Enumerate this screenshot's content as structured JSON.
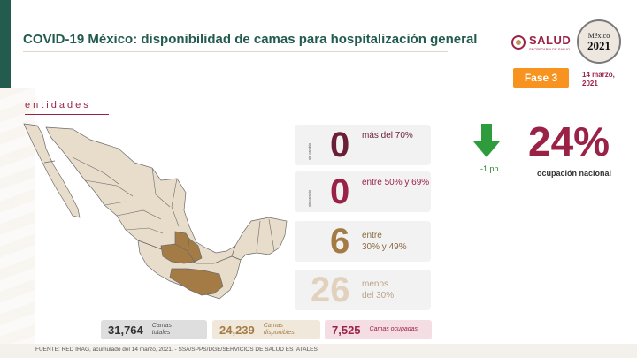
{
  "header": {
    "title": "COVID-19 México: disponibilidad de camas para hospitalización general",
    "salud_logo_text": "SALUD",
    "salud_logo_sub": "SECRETARÍA DE SALUD",
    "mexico_logo_line1": "México",
    "mexico_logo_line2": "2021",
    "fase_label": "Fase 3",
    "date_line1": "14 marzo,",
    "date_line2": "2021"
  },
  "map": {
    "title": "entidades",
    "colors": {
      "base": "#e8dccb",
      "border": "#6b6b6b",
      "range_30_49": "#a57b45"
    }
  },
  "ranges": [
    {
      "side_label": "sin cambio",
      "count": "0",
      "label_line1": "más del 70%",
      "label_line2": "",
      "color": "#6b1f36",
      "label_color": "#6b1f36"
    },
    {
      "side_label": "sin cambio",
      "count": "0",
      "label_line1": "entre 50% y 69%",
      "label_line2": "",
      "color": "#9b2247",
      "label_color": "#9b2247"
    },
    {
      "side_label": "",
      "count": "6",
      "label_line1": "entre",
      "label_line2": "30% y 49%",
      "color": "#a57b45",
      "label_color": "#8a6a3e"
    },
    {
      "side_label": "",
      "count": "26",
      "label_line1": "menos",
      "label_line2": "del 30%",
      "color": "#e2d2bd",
      "label_color": "#b9a386"
    }
  ],
  "stats": [
    {
      "value": "31,764",
      "label_line1": "Camas",
      "label_line2": "totales",
      "bg": "#dedede",
      "color": "#333333"
    },
    {
      "value": "24,239",
      "label_line1": "Camas",
      "label_line2": "disponibles",
      "bg": "#f1e8dc",
      "color": "#a57b45"
    },
    {
      "value": "7,525",
      "label_line1": "Camas ocupadas",
      "label_line2": "",
      "bg": "#f4dde3",
      "color": "#9b2247"
    }
  ],
  "national": {
    "change": "-1 pp",
    "percent": "24%",
    "label": "ocupación nacional",
    "arrow_color": "#2e9c3d"
  },
  "footer": {
    "source": "FUENTE: RED IRAG, acumulado del 14 marzo, 2021.  -  SSA/SPPS/DGE/SERVICIOS DE SALUD ESTATALES"
  }
}
